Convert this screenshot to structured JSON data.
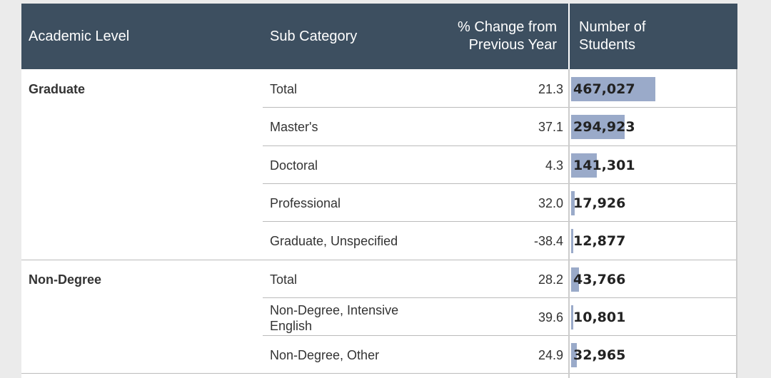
{
  "header": {
    "columns": [
      "Academic Level",
      "Sub Category",
      "% Change from Previous Year",
      "Number of Students"
    ]
  },
  "groups": [
    {
      "level": "Graduate",
      "rows": [
        {
          "sub": "Total",
          "change": "21.3",
          "students": {
            "value": 467027,
            "label": "467,027"
          }
        },
        {
          "sub": "Master's",
          "change": "37.1",
          "students": {
            "value": 294923,
            "label": "294,923"
          }
        },
        {
          "sub": "Doctoral",
          "change": "4.3",
          "students": {
            "value": 141301,
            "label": "141,301"
          }
        },
        {
          "sub": "Professional",
          "change": "32.0",
          "students": {
            "value": 17926,
            "label": "17,926"
          }
        },
        {
          "sub": "Graduate, Unspecified",
          "change": "-38.4",
          "students": {
            "value": 12877,
            "label": "12,877"
          }
        }
      ]
    },
    {
      "level": "Non-Degree",
      "rows": [
        {
          "sub": "Total",
          "change": "28.2",
          "students": {
            "value": 43766,
            "label": "43,766"
          }
        },
        {
          "sub": "Non-Degree, Intensive English",
          "change": "39.6",
          "students": {
            "value": 10801,
            "label": "10,801"
          }
        },
        {
          "sub": "Non-Degree, Other",
          "change": "24.9",
          "students": {
            "value": 32965,
            "label": "32,965"
          }
        }
      ]
    }
  ]
}
